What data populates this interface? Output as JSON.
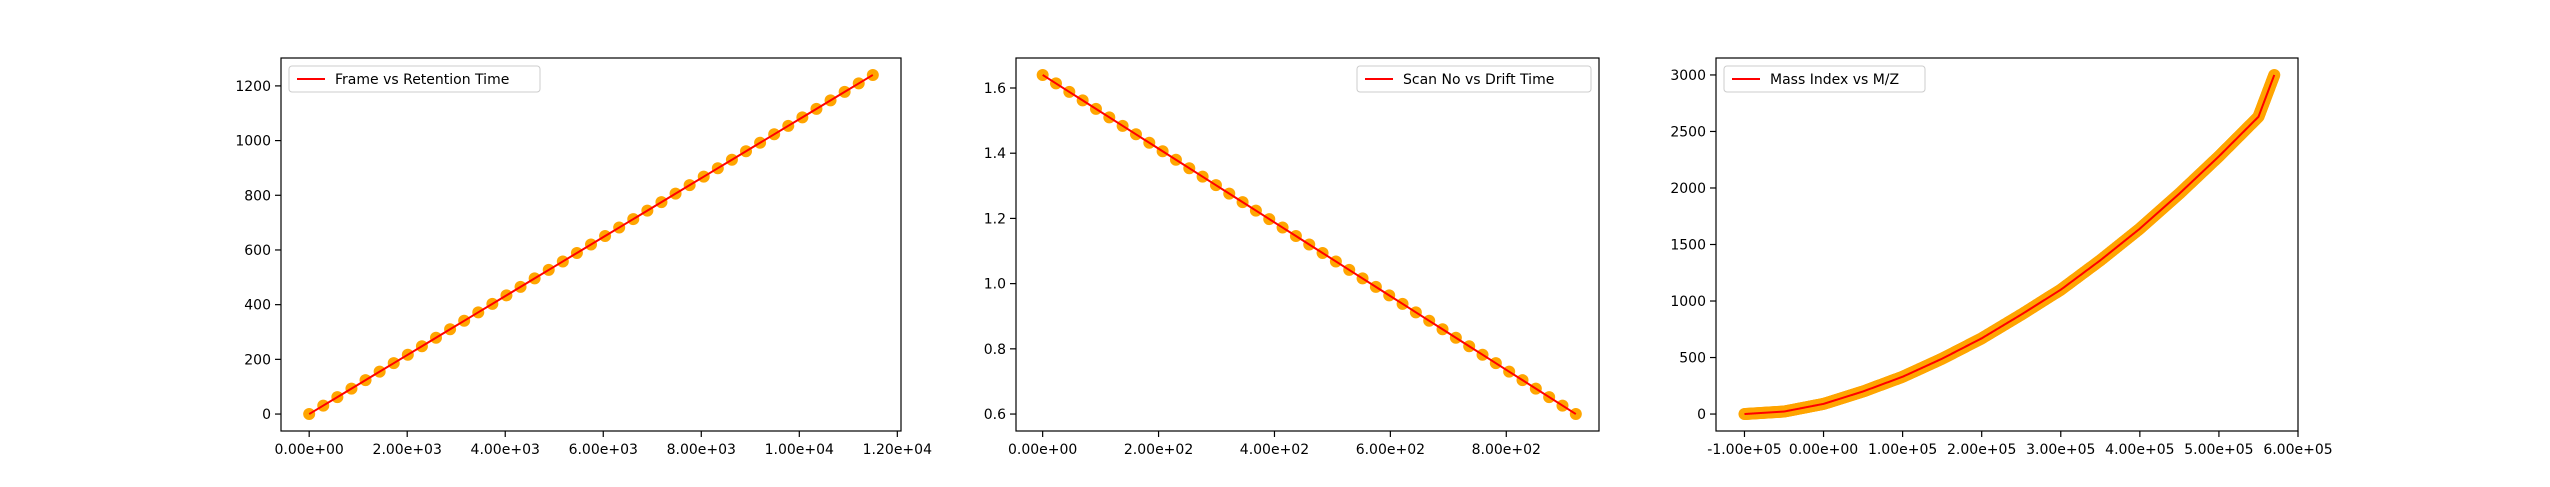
{
  "chart_data": [
    {
      "type": "line",
      "title": "",
      "xlabel": "",
      "ylabel": "",
      "xlim": [
        -575,
        12075
      ],
      "ylim": [
        -62,
        1302
      ],
      "xticks": [
        0,
        2000,
        4000,
        6000,
        8000,
        10000,
        12000
      ],
      "xtick_labels": [
        "0.00e+00",
        "2.00e+03",
        "4.00e+03",
        "6.00e+03",
        "8.00e+03",
        "1.00e+04",
        "1.20e+04"
      ],
      "yticks": [
        0,
        200,
        400,
        600,
        800,
        1000,
        1200
      ],
      "ytick_labels": [
        "0",
        "200",
        "400",
        "600",
        "800",
        "1000",
        "1200"
      ],
      "legend_position": "upper-left",
      "series": [
        {
          "name": "Frame vs Retention Time",
          "marker_color": "#ffa500",
          "line_color": "#ff0000",
          "x": [
            0,
            11500
          ],
          "y": [
            0,
            1240
          ]
        }
      ]
    },
    {
      "type": "line",
      "title": "",
      "xlabel": "",
      "ylabel": "",
      "xlim": [
        -46,
        960
      ],
      "ylim": [
        0.548,
        1.692
      ],
      "xticks": [
        0,
        200,
        400,
        600,
        800
      ],
      "xtick_labels": [
        "0.00e+00",
        "2.00e+02",
        "4.00e+02",
        "6.00e+02",
        "8.00e+02"
      ],
      "yticks": [
        0.6,
        0.8,
        1.0,
        1.2,
        1.4,
        1.6
      ],
      "ytick_labels": [
        "0.6",
        "0.8",
        "1.0",
        "1.2",
        "1.4",
        "1.6"
      ],
      "legend_position": "upper-right",
      "series": [
        {
          "name": "Scan No vs Drift Time",
          "marker_color": "#ffa500",
          "line_color": "#ff0000",
          "x": [
            0,
            920
          ],
          "y": [
            1.64,
            0.6
          ]
        }
      ]
    },
    {
      "type": "line",
      "title": "",
      "xlabel": "",
      "ylabel": "",
      "xlim": [
        -136000,
        600000
      ],
      "ylim": [
        -150,
        3150
      ],
      "xticks": [
        -100000,
        0,
        100000,
        200000,
        300000,
        400000,
        500000,
        600000
      ],
      "xtick_labels": [
        "-1.00e+05",
        "0.00e+00",
        "1.00e+05",
        "2.00e+05",
        "3.00e+05",
        "4.00e+05",
        "5.00e+05",
        "6.00e+05"
      ],
      "yticks": [
        0,
        500,
        1000,
        1500,
        2000,
        2500,
        3000
      ],
      "ytick_labels": [
        "0",
        "500",
        "1000",
        "1500",
        "2000",
        "2500",
        "3000"
      ],
      "legend_position": "upper-left",
      "series": [
        {
          "name": "Mass Index vs M/Z",
          "marker_color": "#ffa500",
          "line_color": "#ff0000",
          "x": [
            -100000,
            -50000,
            0,
            50000,
            100000,
            150000,
            200000,
            250000,
            300000,
            350000,
            400000,
            450000,
            500000,
            550000,
            570000
          ],
          "y": [
            0,
            22,
            90,
            200,
            330,
            490,
            670,
            880,
            1100,
            1360,
            1640,
            1950,
            2280,
            2630,
            3000
          ]
        }
      ]
    }
  ]
}
